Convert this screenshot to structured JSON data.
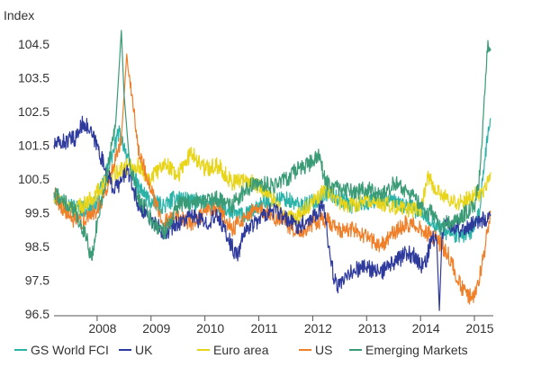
{
  "chart_data": {
    "type": "line",
    "ylabel": "Index",
    "ylim": [
      96.5,
      105.0
    ],
    "y_ticks": [
      104.5,
      103.5,
      102.5,
      101.5,
      100.5,
      99.5,
      98.5,
      97.5,
      96.5
    ],
    "xlim": [
      2007.2,
      2015.35
    ],
    "x_ticks": [
      2008,
      2009,
      2010,
      2011,
      2012,
      2013,
      2014,
      2015
    ],
    "grid": false,
    "legend_position": "bottom",
    "series": [
      {
        "name": "GS World FCI",
        "color": "#2bb3a8",
        "points": [
          [
            2007.2,
            100.0
          ],
          [
            2007.5,
            99.7
          ],
          [
            2007.8,
            99.6
          ],
          [
            2008.0,
            99.8
          ],
          [
            2008.15,
            100.6
          ],
          [
            2008.3,
            101.3
          ],
          [
            2008.4,
            101.9
          ],
          [
            2008.5,
            101.5
          ],
          [
            2008.6,
            100.9
          ],
          [
            2008.75,
            100.3
          ],
          [
            2009.0,
            99.8
          ],
          [
            2009.25,
            99.7
          ],
          [
            2009.5,
            100.0
          ],
          [
            2009.75,
            99.8
          ],
          [
            2010.0,
            99.8
          ],
          [
            2010.25,
            99.7
          ],
          [
            2010.5,
            99.5
          ],
          [
            2010.75,
            99.4
          ],
          [
            2011.0,
            99.7
          ],
          [
            2011.25,
            99.9
          ],
          [
            2011.5,
            99.9
          ],
          [
            2011.75,
            99.7
          ],
          [
            2012.0,
            99.8
          ],
          [
            2012.25,
            100.1
          ],
          [
            2012.5,
            99.9
          ],
          [
            2012.75,
            99.7
          ],
          [
            2013.0,
            99.8
          ],
          [
            2013.25,
            99.9
          ],
          [
            2013.5,
            99.8
          ],
          [
            2013.75,
            99.7
          ],
          [
            2014.0,
            99.5
          ],
          [
            2014.25,
            99.2
          ],
          [
            2014.5,
            98.9
          ],
          [
            2014.75,
            98.8
          ],
          [
            2015.0,
            99.0
          ],
          [
            2015.1,
            99.6
          ],
          [
            2015.18,
            100.8
          ],
          [
            2015.25,
            101.8
          ],
          [
            2015.3,
            102.3
          ]
        ]
      },
      {
        "name": "UK",
        "color": "#2e3a9c",
        "points": [
          [
            2007.2,
            101.5
          ],
          [
            2007.4,
            101.6
          ],
          [
            2007.6,
            101.7
          ],
          [
            2007.75,
            102.2
          ],
          [
            2007.9,
            101.8
          ],
          [
            2008.0,
            101.5
          ],
          [
            2008.15,
            100.8
          ],
          [
            2008.3,
            100.2
          ],
          [
            2008.45,
            100.4
          ],
          [
            2008.55,
            100.8
          ],
          [
            2008.75,
            99.8
          ],
          [
            2009.0,
            99.3
          ],
          [
            2009.25,
            98.9
          ],
          [
            2009.5,
            99.2
          ],
          [
            2009.75,
            99.4
          ],
          [
            2010.0,
            99.2
          ],
          [
            2010.25,
            99.4
          ],
          [
            2010.5,
            98.5
          ],
          [
            2010.6,
            98.2
          ],
          [
            2010.75,
            99.0
          ],
          [
            2011.0,
            99.3
          ],
          [
            2011.25,
            99.6
          ],
          [
            2011.5,
            99.3
          ],
          [
            2011.75,
            99.1
          ],
          [
            2012.0,
            99.4
          ],
          [
            2012.2,
            99.7
          ],
          [
            2012.3,
            98.5
          ],
          [
            2012.4,
            97.5
          ],
          [
            2012.5,
            97.3
          ],
          [
            2012.75,
            97.8
          ],
          [
            2013.0,
            97.9
          ],
          [
            2013.25,
            97.7
          ],
          [
            2013.5,
            98.0
          ],
          [
            2013.75,
            98.3
          ],
          [
            2013.9,
            98.2
          ],
          [
            2014.0,
            97.9
          ],
          [
            2014.1,
            98.0
          ],
          [
            2014.2,
            98.8
          ],
          [
            2014.3,
            98.7
          ],
          [
            2014.35,
            96.6
          ],
          [
            2014.4,
            98.9
          ],
          [
            2014.5,
            99.2
          ],
          [
            2014.75,
            99.0
          ],
          [
            2015.0,
            99.2
          ],
          [
            2015.15,
            99.3
          ],
          [
            2015.3,
            99.4
          ]
        ]
      },
      {
        "name": "Euro area",
        "color": "#e8d51a",
        "points": [
          [
            2007.2,
            99.9
          ],
          [
            2007.4,
            99.7
          ],
          [
            2007.6,
            99.6
          ],
          [
            2007.8,
            99.8
          ],
          [
            2008.0,
            100.1
          ],
          [
            2008.2,
            100.5
          ],
          [
            2008.4,
            100.7
          ],
          [
            2008.6,
            100.9
          ],
          [
            2008.75,
            100.9
          ],
          [
            2009.0,
            100.5
          ],
          [
            2009.25,
            101.0
          ],
          [
            2009.5,
            100.6
          ],
          [
            2009.75,
            101.3
          ],
          [
            2010.0,
            100.8
          ],
          [
            2010.25,
            100.9
          ],
          [
            2010.5,
            100.4
          ],
          [
            2010.75,
            100.5
          ],
          [
            2011.0,
            100.3
          ],
          [
            2011.25,
            99.9
          ],
          [
            2011.5,
            99.3
          ],
          [
            2011.75,
            99.4
          ],
          [
            2012.0,
            99.8
          ],
          [
            2012.25,
            100.2
          ],
          [
            2012.5,
            99.8
          ],
          [
            2012.75,
            99.7
          ],
          [
            2013.0,
            99.9
          ],
          [
            2013.25,
            99.8
          ],
          [
            2013.5,
            99.7
          ],
          [
            2013.75,
            99.6
          ],
          [
            2014.0,
            99.6
          ],
          [
            2014.15,
            100.6
          ],
          [
            2014.3,
            100.1
          ],
          [
            2014.5,
            99.9
          ],
          [
            2014.75,
            99.8
          ],
          [
            2015.0,
            100.0
          ],
          [
            2015.15,
            100.1
          ],
          [
            2015.3,
            100.7
          ]
        ]
      },
      {
        "name": "US",
        "color": "#f07f2a",
        "points": [
          [
            2007.2,
            100.1
          ],
          [
            2007.4,
            99.5
          ],
          [
            2007.6,
            99.2
          ],
          [
            2007.8,
            99.3
          ],
          [
            2008.0,
            99.6
          ],
          [
            2008.2,
            100.3
          ],
          [
            2008.35,
            101.2
          ],
          [
            2008.45,
            101.7
          ],
          [
            2008.55,
            104.2
          ],
          [
            2008.65,
            103.0
          ],
          [
            2008.75,
            101.5
          ],
          [
            2009.0,
            100.1
          ],
          [
            2009.25,
            99.2
          ],
          [
            2009.5,
            99.4
          ],
          [
            2009.75,
            99.2
          ],
          [
            2010.0,
            99.5
          ],
          [
            2010.25,
            99.6
          ],
          [
            2010.5,
            99.0
          ],
          [
            2010.75,
            99.4
          ],
          [
            2011.0,
            99.6
          ],
          [
            2011.25,
            99.4
          ],
          [
            2011.5,
            99.2
          ],
          [
            2011.75,
            98.8
          ],
          [
            2012.0,
            99.2
          ],
          [
            2012.25,
            99.3
          ],
          [
            2012.5,
            99.0
          ],
          [
            2012.75,
            99.0
          ],
          [
            2013.0,
            98.8
          ],
          [
            2013.25,
            98.5
          ],
          [
            2013.5,
            98.9
          ],
          [
            2013.75,
            99.2
          ],
          [
            2014.0,
            99.0
          ],
          [
            2014.25,
            98.8
          ],
          [
            2014.5,
            98.3
          ],
          [
            2014.75,
            97.3
          ],
          [
            2014.9,
            97.0
          ],
          [
            2015.0,
            97.1
          ],
          [
            2015.1,
            97.6
          ],
          [
            2015.2,
            98.5
          ],
          [
            2015.3,
            99.5
          ]
        ]
      },
      {
        "name": "Emerging Markets",
        "color": "#3a9b76",
        "points": [
          [
            2007.2,
            100.1
          ],
          [
            2007.4,
            99.8
          ],
          [
            2007.6,
            99.5
          ],
          [
            2007.8,
            98.8
          ],
          [
            2007.9,
            98.1
          ],
          [
            2008.0,
            99.2
          ],
          [
            2008.2,
            100.8
          ],
          [
            2008.35,
            102.3
          ],
          [
            2008.45,
            104.9
          ],
          [
            2008.5,
            103.0
          ],
          [
            2008.6,
            101.0
          ],
          [
            2008.75,
            100.0
          ],
          [
            2009.0,
            99.3
          ],
          [
            2009.25,
            98.9
          ],
          [
            2009.5,
            99.7
          ],
          [
            2009.75,
            99.8
          ],
          [
            2010.0,
            99.9
          ],
          [
            2010.25,
            99.9
          ],
          [
            2010.5,
            99.7
          ],
          [
            2010.75,
            100.2
          ],
          [
            2011.0,
            100.4
          ],
          [
            2011.25,
            100.3
          ],
          [
            2011.5,
            100.5
          ],
          [
            2011.75,
            100.8
          ],
          [
            2012.0,
            101.0
          ],
          [
            2012.1,
            101.2
          ],
          [
            2012.25,
            100.4
          ],
          [
            2012.5,
            100.2
          ],
          [
            2012.75,
            100.1
          ],
          [
            2013.0,
            100.2
          ],
          [
            2013.25,
            100.0
          ],
          [
            2013.5,
            100.4
          ],
          [
            2013.75,
            100.1
          ],
          [
            2014.0,
            99.8
          ],
          [
            2014.1,
            99.4
          ],
          [
            2014.2,
            99.6
          ],
          [
            2014.35,
            99.0
          ],
          [
            2014.5,
            99.2
          ],
          [
            2014.75,
            99.4
          ],
          [
            2015.0,
            99.7
          ],
          [
            2015.1,
            100.6
          ],
          [
            2015.15,
            101.8
          ],
          [
            2015.2,
            103.2
          ],
          [
            2015.25,
            104.6
          ],
          [
            2015.3,
            104.3
          ]
        ]
      }
    ]
  }
}
